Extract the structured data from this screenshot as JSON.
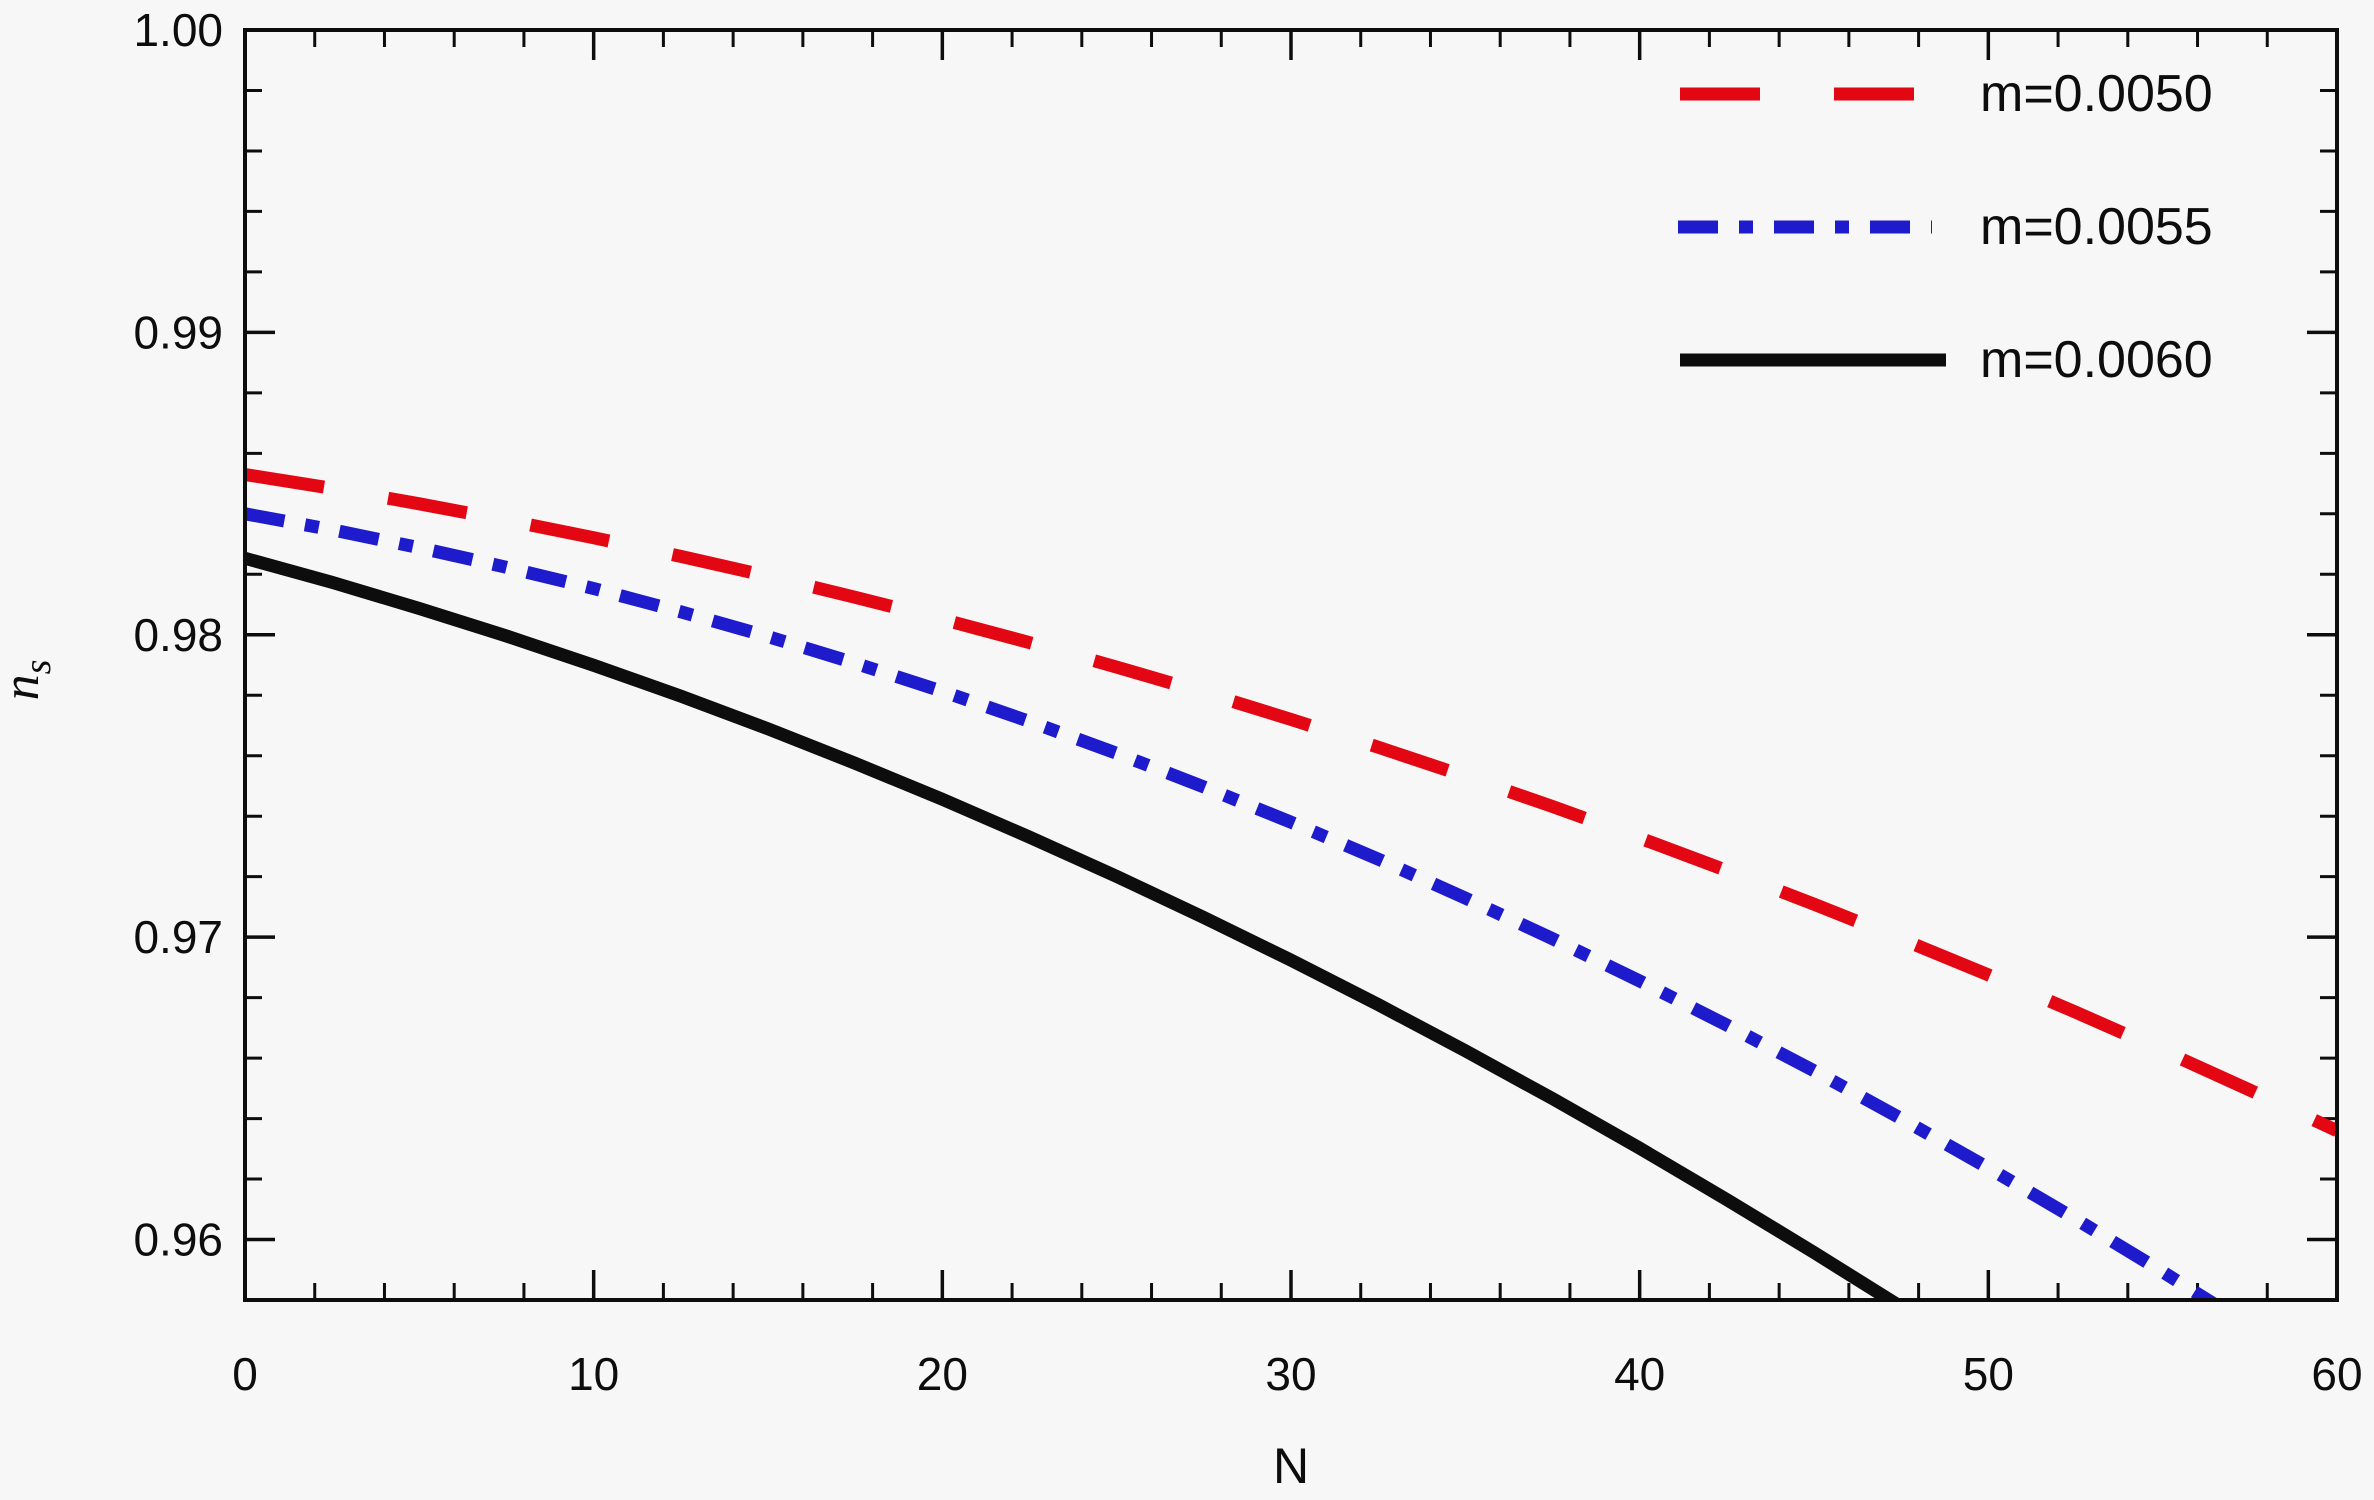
{
  "figure": {
    "background_color": "#f7f7f7",
    "frame_color": "#0d0d0d",
    "text_color": "#0d0d0d"
  },
  "chart_data": {
    "type": "line",
    "title": "",
    "xlabel": "N",
    "ylabel_base": "n",
    "ylabel_sub": "s",
    "xlim": [
      0,
      60
    ],
    "ylim": [
      0.958,
      1.0
    ],
    "grid": false,
    "legend_position": "top-right",
    "x_ticks": [
      {
        "value": 0,
        "label": "0"
      },
      {
        "value": 10,
        "label": "10"
      },
      {
        "value": 20,
        "label": "20"
      },
      {
        "value": 30,
        "label": "30"
      },
      {
        "value": 40,
        "label": "40"
      },
      {
        "value": 50,
        "label": "50"
      },
      {
        "value": 60,
        "label": "60"
      }
    ],
    "x_minor_step": 2,
    "y_ticks": [
      {
        "value": 1.0,
        "label": "1.00"
      },
      {
        "value": 0.99,
        "label": "0.99"
      },
      {
        "value": 0.98,
        "label": "0.98"
      },
      {
        "value": 0.97,
        "label": "0.97"
      },
      {
        "value": 0.96,
        "label": "0.96"
      }
    ],
    "y_minor_step": 0.002,
    "series": [
      {
        "name": "m=0.0050",
        "color": "#e30613",
        "style": "dashed",
        "dash": [
          80,
          65
        ],
        "width": 13,
        "x": [
          0,
          2.5,
          5,
          7.5,
          10,
          12.5,
          15,
          17.5,
          20,
          22.5,
          25,
          27.5,
          30,
          32.5,
          35,
          37.5,
          40,
          42.5,
          45,
          47.5,
          50,
          52.5,
          55,
          57.5,
          60
        ],
        "y": [
          0.9853,
          0.98484,
          0.98433,
          0.98379,
          0.98321,
          0.98259,
          0.98194,
          0.98124,
          0.98051,
          0.97974,
          0.97893,
          0.97809,
          0.9772,
          0.97628,
          0.97532,
          0.97432,
          0.97328,
          0.9722,
          0.97109,
          0.96994,
          0.96875,
          0.96752,
          0.96625,
          0.96494,
          0.9636
        ]
      },
      {
        "name": "m=0.0055",
        "color": "#1e1bcc",
        "style": "dash-dot",
        "dash": [
          40,
          21,
          14,
          21
        ],
        "width": 13,
        "x": [
          0,
          2.5,
          5,
          7.5,
          10,
          12.5,
          15,
          17.5,
          20,
          22.5,
          25,
          27.5,
          30,
          32.5,
          35,
          37.5,
          40,
          42.5,
          45,
          47.5,
          50,
          52.5,
          55,
          57.5
        ],
        "y": [
          0.984,
          0.98347,
          0.98288,
          0.98223,
          0.98153,
          0.98076,
          0.97994,
          0.97906,
          0.97813,
          0.97713,
          0.97608,
          0.97497,
          0.9738,
          0.97258,
          0.97129,
          0.96995,
          0.96855,
          0.96709,
          0.96558,
          0.964,
          0.96237,
          0.96068,
          0.95893,
          0.95713
        ]
      },
      {
        "name": "m=0.0060",
        "color": "#0d0d0d",
        "style": "solid",
        "dash": [],
        "width": 13,
        "x": [
          0,
          2.5,
          5,
          7.5,
          10,
          12.5,
          15,
          17.5,
          20,
          22.5,
          25,
          27.5,
          30,
          32.5,
          35,
          37.5,
          40,
          42.5,
          45,
          47.5
        ],
        "y": [
          0.98253,
          0.98173,
          0.98087,
          0.97996,
          0.97899,
          0.97797,
          0.97689,
          0.97575,
          0.97456,
          0.97331,
          0.97201,
          0.97065,
          0.96924,
          0.96777,
          0.96624,
          0.96466,
          0.96302,
          0.96132,
          0.95957,
          0.95777
        ]
      }
    ]
  }
}
